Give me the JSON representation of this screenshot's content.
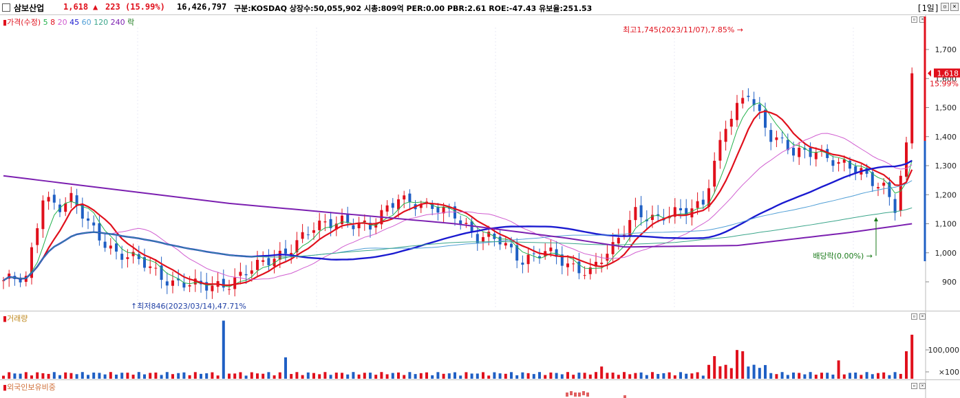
{
  "header": {
    "name": "삼보산업",
    "price": "1,618",
    "arrow": "▲",
    "change": "223",
    "change_pct": "(15.99%)",
    "volume": "16,426,797",
    "info": "구분:KOSDAQ 상장수:50,055,902 시총:809억 PER:0.00 PBR:2.61 ROE:-47.43 유보율:251.53",
    "period": "[1일]"
  },
  "price_pane": {
    "legend": [
      {
        "text": "가격(수정)",
        "color": "#e0101c"
      },
      {
        "text": "5",
        "color": "#22b14c"
      },
      {
        "text": "8",
        "color": "#e0101c"
      },
      {
        "text": "20",
        "color": "#d05cd0"
      },
      {
        "text": "45",
        "color": "#1a1ad0"
      },
      {
        "text": "60",
        "color": "#4f9ed6"
      },
      {
        "text": "120",
        "color": "#3aa58a"
      },
      {
        "text": "240",
        "color": "#7b1fb0"
      },
      {
        "text": "락",
        "color": "#1a7a1a"
      }
    ],
    "y_ticks": [
      "1,700",
      "1,600",
      "1,500",
      "1,400",
      "1,300",
      "1,200",
      "1,100",
      "1,000",
      "900"
    ],
    "current_tag": "1,618",
    "current_pct": "15.99%",
    "high_annotation": "최고1,745(2023/11/07),7.85%",
    "low_annotation": "최저846(2023/03/14),47.71%",
    "dividend_annotation": "배당락(0.00%)"
  },
  "volume_pane": {
    "legend": "거래량",
    "y_ticks": [
      "100,000",
      "×100"
    ]
  },
  "foreign_pane": {
    "legend": "외국인보유비중"
  },
  "colors": {
    "up": "#e0101c",
    "down": "#1f5fc4"
  }
}
